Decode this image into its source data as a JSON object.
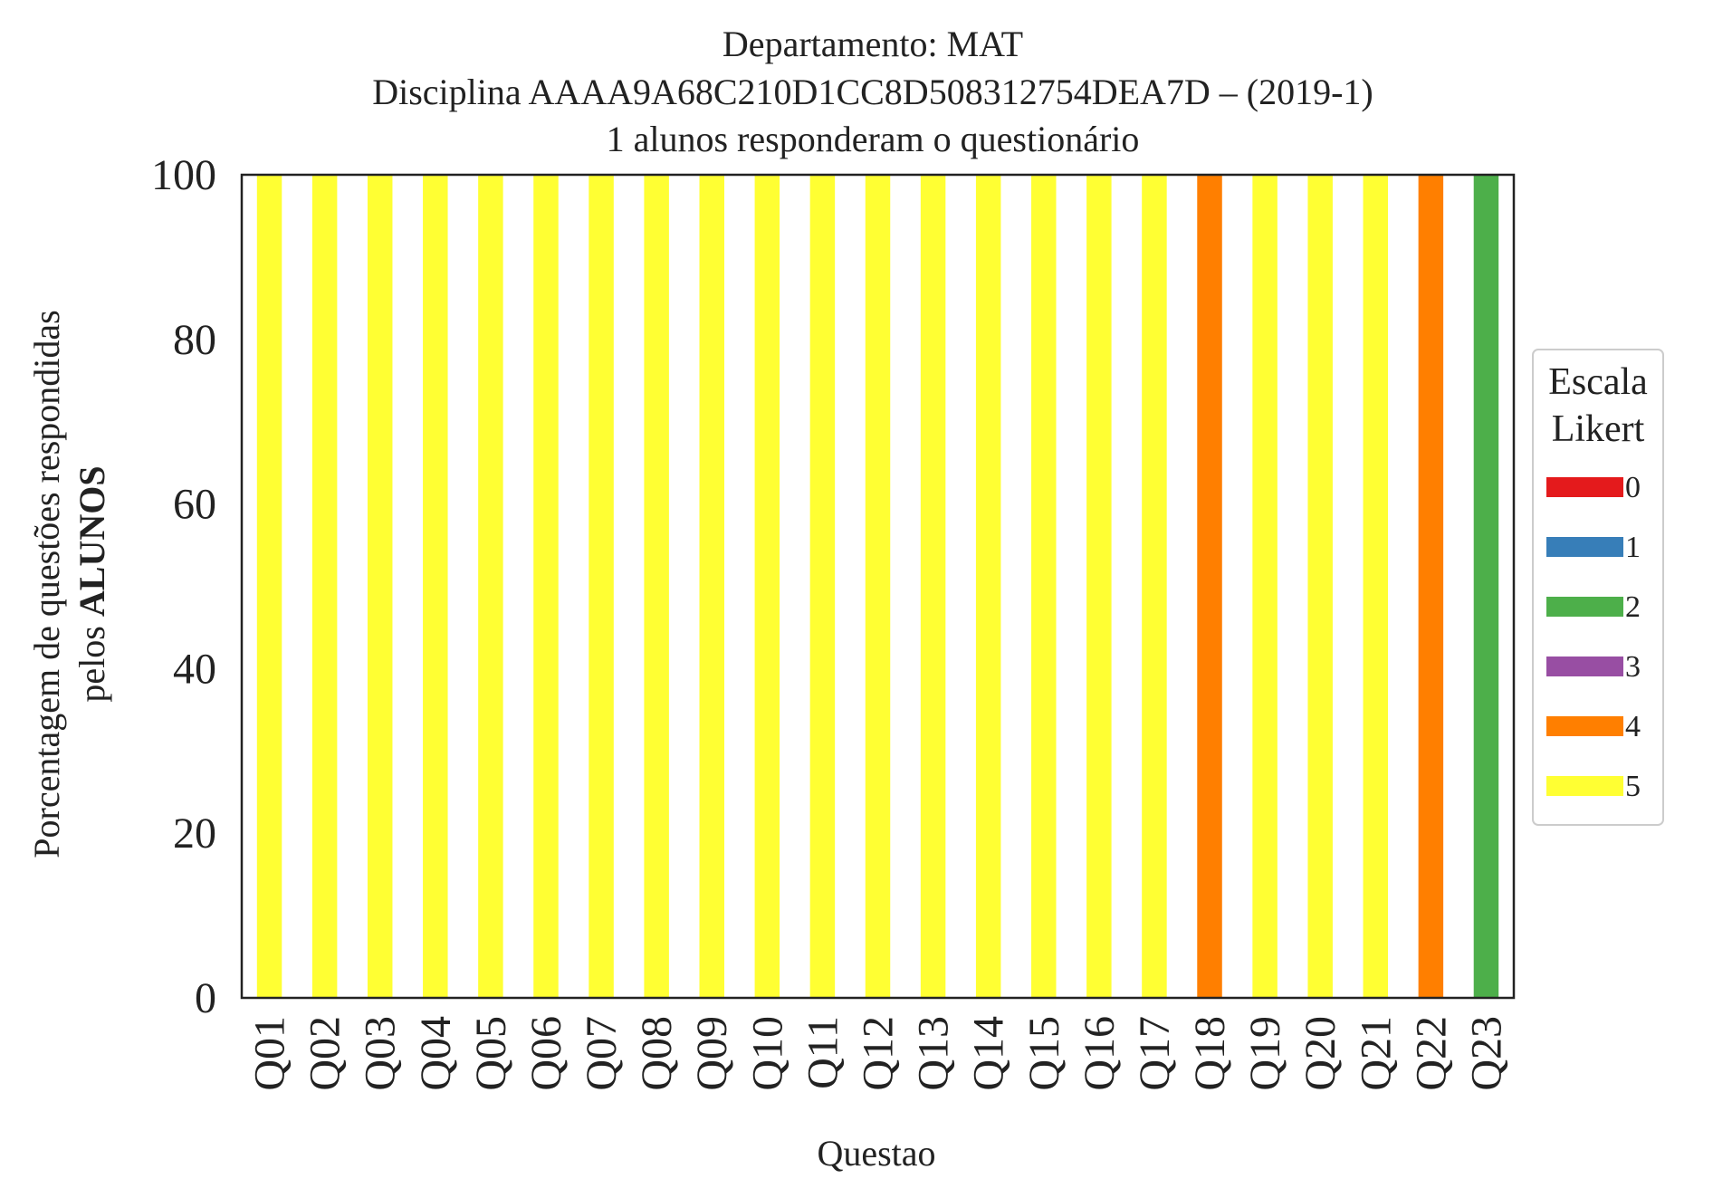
{
  "chart_data": {
    "type": "bar",
    "stacked": true,
    "title_lines": [
      "Departamento: MAT",
      "Disciplina AAAA9A68C210D1CC8D508312754DEA7D – (2019-1)",
      "1 alunos responderam o questionário"
    ],
    "xlabel": "Questao",
    "ylabel_line1": "Porcentagem de questões respondidas",
    "ylabel_line2_prefix": "pelos ",
    "ylabel_line2_bold": "ALUNOS",
    "ylim": [
      0,
      100
    ],
    "yticks": [
      0,
      20,
      40,
      60,
      80,
      100
    ],
    "categories": [
      "Q01",
      "Q02",
      "Q03",
      "Q04",
      "Q05",
      "Q06",
      "Q07",
      "Q08",
      "Q09",
      "Q10",
      "Q11",
      "Q12",
      "Q13",
      "Q14",
      "Q15",
      "Q16",
      "Q17",
      "Q18",
      "Q19",
      "Q20",
      "Q21",
      "Q22",
      "Q23"
    ],
    "series": [
      {
        "name": "0",
        "color": "#e41a1c",
        "values": [
          0,
          0,
          0,
          0,
          0,
          0,
          0,
          0,
          0,
          0,
          0,
          0,
          0,
          0,
          0,
          0,
          0,
          0,
          0,
          0,
          0,
          0,
          0
        ]
      },
      {
        "name": "1",
        "color": "#377eb8",
        "values": [
          0,
          0,
          0,
          0,
          0,
          0,
          0,
          0,
          0,
          0,
          0,
          0,
          0,
          0,
          0,
          0,
          0,
          0,
          0,
          0,
          0,
          0,
          0
        ]
      },
      {
        "name": "2",
        "color": "#4daf4a",
        "values": [
          0,
          0,
          0,
          0,
          0,
          0,
          0,
          0,
          0,
          0,
          0,
          0,
          0,
          0,
          0,
          0,
          0,
          0,
          0,
          0,
          0,
          0,
          100
        ]
      },
      {
        "name": "3",
        "color": "#984ea3",
        "values": [
          0,
          0,
          0,
          0,
          0,
          0,
          0,
          0,
          0,
          0,
          0,
          0,
          0,
          0,
          0,
          0,
          0,
          0,
          0,
          0,
          0,
          0,
          0
        ]
      },
      {
        "name": "4",
        "color": "#ff7f00",
        "values": [
          0,
          0,
          0,
          0,
          0,
          0,
          0,
          0,
          0,
          0,
          0,
          0,
          0,
          0,
          0,
          0,
          0,
          100,
          0,
          0,
          0,
          100,
          0
        ]
      },
      {
        "name": "5",
        "color": "#ffff33",
        "values": [
          100,
          100,
          100,
          100,
          100,
          100,
          100,
          100,
          100,
          100,
          100,
          100,
          100,
          100,
          100,
          100,
          100,
          0,
          100,
          100,
          100,
          0,
          0
        ]
      }
    ],
    "legend": {
      "title_lines": [
        "Escala",
        "Likert"
      ],
      "placement": "right"
    },
    "grid": false
  }
}
